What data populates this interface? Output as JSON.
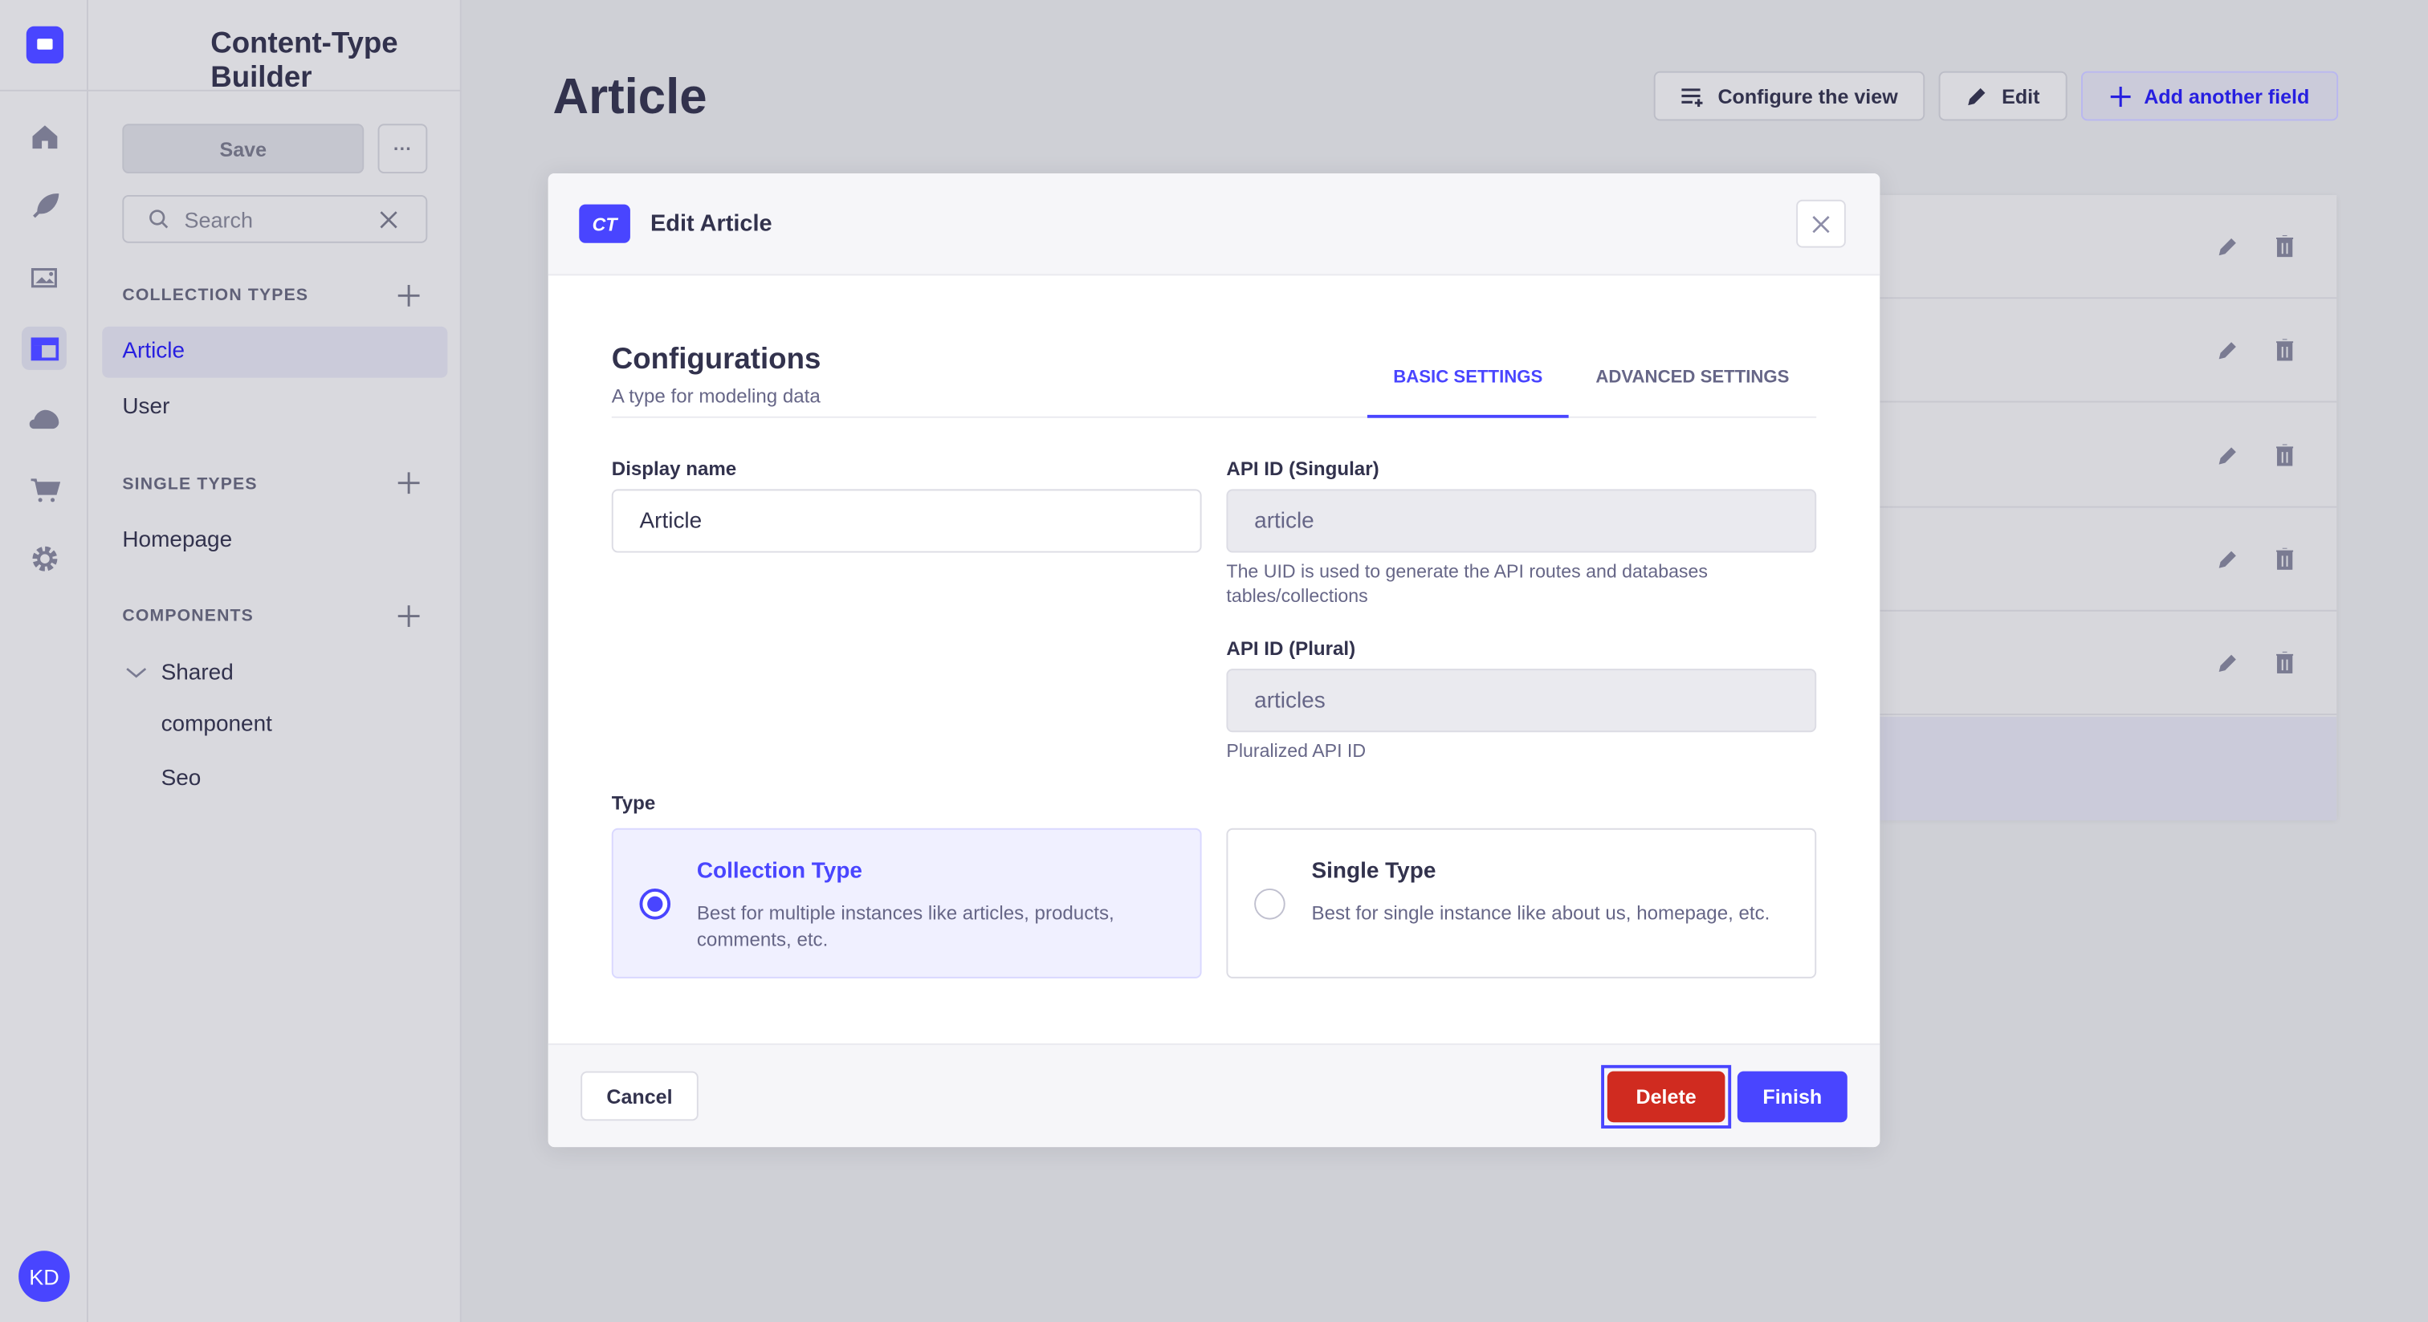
{
  "nav": {
    "avatar_initials": "KD",
    "items": [
      "home",
      "content-manager",
      "media-library",
      "content-type-builder",
      "cloud",
      "marketplace",
      "settings"
    ]
  },
  "sidebar": {
    "title": "Content-Type Builder",
    "save_label": "Save",
    "more_label": "···",
    "search_placeholder": "Search",
    "collection_types": {
      "label": "COLLECTION TYPES",
      "items": [
        "Article",
        "User"
      ],
      "selected": "Article"
    },
    "single_types": {
      "label": "SINGLE TYPES",
      "items": [
        "Homepage"
      ]
    },
    "components": {
      "label": "COMPONENTS",
      "group": "Shared",
      "items": [
        "component",
        "Seo"
      ]
    }
  },
  "main": {
    "title": "Article",
    "configure_label": "Configure the view",
    "edit_label": "Edit",
    "add_field_label": "Add another field"
  },
  "modal": {
    "badge": "CT",
    "title": "Edit Article",
    "section_title": "Configurations",
    "section_subtitle": "A type for modeling data",
    "tabs": [
      {
        "label": "BASIC SETTINGS",
        "active": true
      },
      {
        "label": "ADVANCED SETTINGS",
        "active": false
      }
    ],
    "display_name": {
      "label": "Display name",
      "value": "Article"
    },
    "api_singular": {
      "label": "API ID (Singular)",
      "value": "article",
      "help": "The UID is used to generate the API routes and databases tables/collections"
    },
    "api_plural": {
      "label": "API ID (Plural)",
      "value": "articles",
      "help": "Pluralized API ID"
    },
    "type_label": "Type",
    "types": [
      {
        "title": "Collection Type",
        "desc": "Best for multiple instances like articles, products, comments, etc.",
        "selected": true
      },
      {
        "title": "Single Type",
        "desc": "Best for single instance like about us, homepage, etc.",
        "selected": false
      }
    ],
    "cancel_label": "Cancel",
    "delete_label": "Delete",
    "finish_label": "Finish"
  },
  "colors": {
    "primary": "#4945ff",
    "danger": "#d02b20",
    "text": "#32324d",
    "muted": "#666687"
  }
}
